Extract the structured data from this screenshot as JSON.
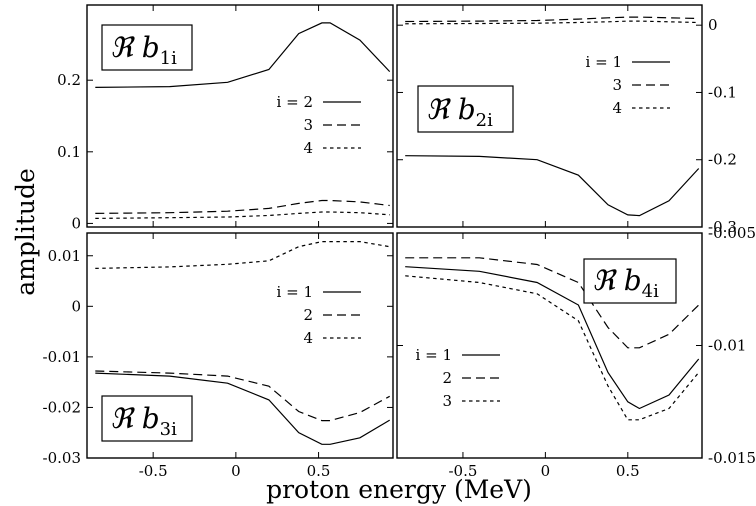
{
  "ylabel": "amplitude",
  "xlabel": "proton energy (MeV)",
  "chart_data": [
    {
      "type": "line",
      "panel": "top-left",
      "title": {
        "prefix": "ℜ b",
        "sub": "1i"
      },
      "xlim": [
        -0.9,
        0.95
      ],
      "ylim": [
        -0.005,
        0.305
      ],
      "yaxis_side": "left",
      "yticks": [
        {
          "v": 0,
          "label": "0"
        },
        {
          "v": 0.1,
          "label": "0.1"
        },
        {
          "v": 0.2,
          "label": "0.2"
        }
      ],
      "xticks": [],
      "x": [
        -0.85,
        -0.4,
        -0.05,
        0.2,
        0.38,
        0.52,
        0.57,
        0.75,
        0.93
      ],
      "series": [
        {
          "name": "i = 2",
          "dash": "solid",
          "values": [
            0.19,
            0.191,
            0.197,
            0.215,
            0.265,
            0.28,
            0.28,
            0.256,
            0.212
          ]
        },
        {
          "name": "3",
          "dash": "long",
          "values": [
            0.014,
            0.015,
            0.017,
            0.021,
            0.028,
            0.032,
            0.032,
            0.03,
            0.025
          ]
        },
        {
          "name": "4",
          "dash": "short",
          "values": [
            0.007,
            0.008,
            0.009,
            0.011,
            0.014,
            0.016,
            0.016,
            0.015,
            0.012
          ]
        }
      ],
      "legend_position": "right"
    },
    {
      "type": "line",
      "panel": "top-right",
      "title": {
        "prefix": "ℜ b",
        "sub": "2i"
      },
      "xlim": [
        -0.9,
        0.95
      ],
      "ylim": [
        -0.3,
        0.03
      ],
      "yaxis_side": "right",
      "yticks": [
        {
          "v": 0,
          "label": "0"
        },
        {
          "v": -0.1,
          "label": "-0.1"
        },
        {
          "v": -0.2,
          "label": "-0.2"
        },
        {
          "v": -0.3,
          "label": "-0.3"
        }
      ],
      "xticks": [],
      "x": [
        -0.85,
        -0.4,
        -0.05,
        0.2,
        0.38,
        0.5,
        0.57,
        0.75,
        0.93
      ],
      "series": [
        {
          "name": "i = 1",
          "dash": "solid",
          "values": [
            -0.194,
            -0.195,
            -0.2,
            -0.223,
            -0.267,
            -0.282,
            -0.283,
            -0.261,
            -0.213
          ]
        },
        {
          "name": "3",
          "dash": "long",
          "values": [
            0.0055,
            0.006,
            0.007,
            0.009,
            0.011,
            0.012,
            0.012,
            0.011,
            0.01
          ]
        },
        {
          "name": "4",
          "dash": "short",
          "values": [
            0.002,
            0.0025,
            0.003,
            0.004,
            0.005,
            0.006,
            0.006,
            0.005,
            0.004
          ]
        }
      ],
      "legend_position": "upper-right"
    },
    {
      "type": "line",
      "panel": "bottom-left",
      "title": {
        "prefix": "ℜ b",
        "sub": "3i"
      },
      "xlim": [
        -0.9,
        0.95
      ],
      "ylim": [
        -0.03,
        0.0145
      ],
      "yaxis_side": "left",
      "yticks": [
        {
          "v": 0.01,
          "label": "0.01"
        },
        {
          "v": 0,
          "label": "0"
        },
        {
          "v": -0.01,
          "label": "-0.01"
        },
        {
          "v": -0.02,
          "label": "-0.02"
        },
        {
          "v": -0.03,
          "label": "-0.03"
        }
      ],
      "xticks": [
        {
          "v": -0.5,
          "label": "-0.5"
        },
        {
          "v": 0,
          "label": "0"
        },
        {
          "v": 0.5,
          "label": "0.5"
        }
      ],
      "x": [
        -0.85,
        -0.4,
        -0.05,
        0.2,
        0.38,
        0.52,
        0.57,
        0.75,
        0.93
      ],
      "series": [
        {
          "name": "i = 1",
          "dash": "solid",
          "values": [
            -0.0132,
            -0.0138,
            -0.0152,
            -0.0185,
            -0.025,
            -0.0273,
            -0.0273,
            -0.026,
            -0.0225
          ]
        },
        {
          "name": "2",
          "dash": "long",
          "values": [
            -0.0128,
            -0.0132,
            -0.0138,
            -0.0158,
            -0.0208,
            -0.0226,
            -0.0226,
            -0.021,
            -0.0178
          ]
        },
        {
          "name": "4",
          "dash": "short",
          "values": [
            0.0075,
            0.0078,
            0.0083,
            0.009,
            0.0118,
            0.0128,
            0.0128,
            0.0128,
            0.0118
          ]
        }
      ],
      "legend_position": "right"
    },
    {
      "type": "line",
      "panel": "bottom-right",
      "title": {
        "prefix": "ℜ b",
        "sub": "4i"
      },
      "xlim": [
        -0.9,
        0.95
      ],
      "ylim": [
        -0.015,
        -0.005
      ],
      "yaxis_side": "right",
      "yticks": [
        {
          "v": -0.005,
          "label": "-0.005"
        },
        {
          "v": -0.01,
          "label": "-0.01"
        },
        {
          "v": -0.015,
          "label": "-0.015"
        }
      ],
      "xticks": [
        {
          "v": -0.5,
          "label": "-0.5"
        },
        {
          "v": 0,
          "label": "0"
        },
        {
          "v": 0.5,
          "label": "0.5"
        }
      ],
      "x": [
        -0.85,
        -0.4,
        -0.05,
        0.2,
        0.38,
        0.5,
        0.57,
        0.75,
        0.93
      ],
      "series": [
        {
          "name": "i = 1",
          "dash": "solid",
          "values": [
            -0.0065,
            -0.0067,
            -0.0072,
            -0.0082,
            -0.0112,
            -0.0125,
            -0.0128,
            -0.0122,
            -0.0106
          ]
        },
        {
          "name": "2",
          "dash": "long",
          "values": [
            -0.0061,
            -0.0061,
            -0.0064,
            -0.0072,
            -0.0092,
            -0.0101,
            -0.0101,
            -0.0095,
            -0.0082
          ]
        },
        {
          "name": "3",
          "dash": "short",
          "values": [
            -0.0069,
            -0.0072,
            -0.0077,
            -0.0089,
            -0.0118,
            -0.0133,
            -0.0133,
            -0.0128,
            -0.0112
          ]
        }
      ],
      "legend_position": "lower-left"
    }
  ]
}
